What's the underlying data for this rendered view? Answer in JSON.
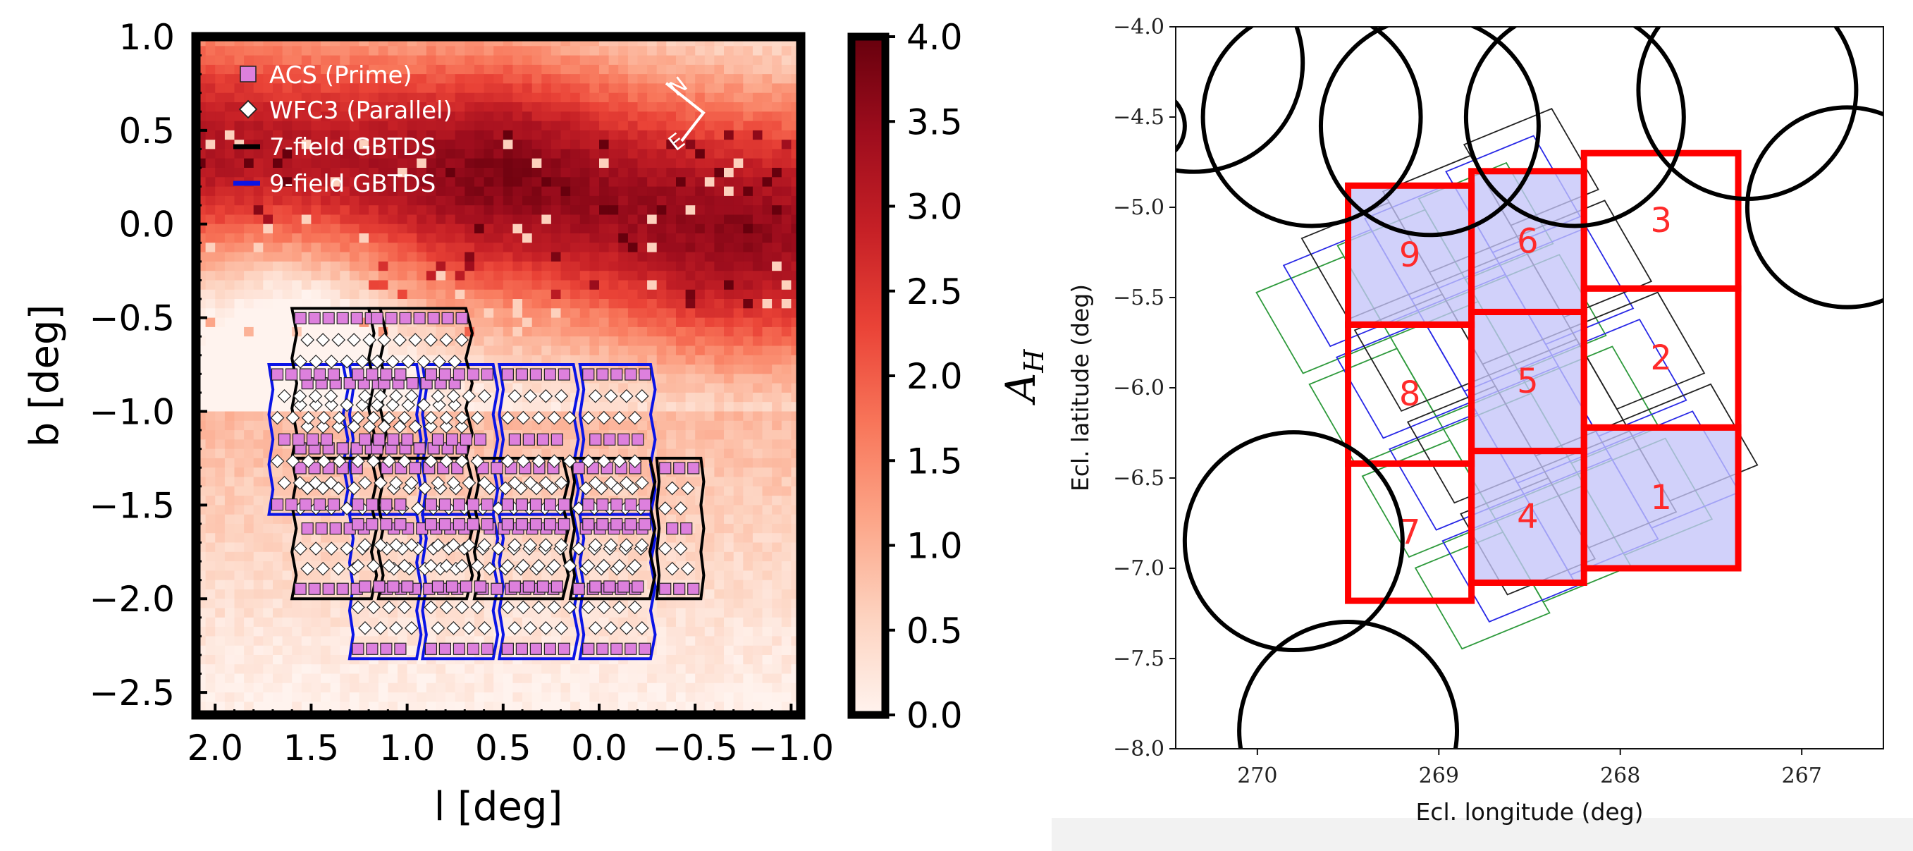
{
  "chart_data": [
    {
      "type": "heatmap",
      "title": "",
      "xlabel": "l [deg]",
      "ylabel": "b [deg]",
      "xlim": [
        2.1,
        -1.05
      ],
      "ylim": [
        -2.62,
        1.0
      ],
      "x_ticks": [
        "2.0",
        "1.5",
        "1.0",
        "0.5",
        "0.0",
        "−0.5",
        "−1.0"
      ],
      "y_ticks": [
        "1.0",
        "0.5",
        "0.0",
        "−0.5",
        "−1.0",
        "−1.5",
        "−2.0",
        "−2.5"
      ],
      "colorbar": {
        "label": "A_H",
        "range": [
          0.0,
          4.0
        ],
        "ticks": [
          "0.0",
          "0.5",
          "1.0",
          "1.5",
          "2.0",
          "2.5",
          "3.0",
          "3.5",
          "4.0"
        ],
        "colors": [
          "#fff3ee",
          "#fdd3c0",
          "#fca689",
          "#f8765a",
          "#ea4337",
          "#c62026",
          "#9e0d1d",
          "#67000d"
        ]
      },
      "legend": {
        "placement": "upper-left",
        "entries": [
          {
            "label": "ACS (Prime)",
            "marker": "square",
            "color": "#dd80dd"
          },
          {
            "label": "WFC3 (Parallel)",
            "marker": "diamond",
            "color": "#ffffff"
          },
          {
            "label": "7-field GBTDS",
            "marker": "line",
            "color": "#000000"
          },
          {
            "label": "9-field GBTDS",
            "marker": "line",
            "color": "#0a14e6"
          }
        ]
      },
      "compass": {
        "north": "N",
        "east": "E"
      },
      "series": [
        {
          "name": "7-field GBTDS",
          "fields": [
            {
              "l_range": [
                1.6,
                1.1
              ],
              "b_range": [
                -0.45,
                -1.25
              ]
            },
            {
              "l_range": [
                1.2,
                0.65
              ],
              "b_range": [
                -0.45,
                -1.25
              ]
            },
            {
              "l_range": [
                1.6,
                1.15
              ],
              "b_range": [
                -1.25,
                -2.0
              ]
            },
            {
              "l_range": [
                1.15,
                0.65
              ],
              "b_range": [
                -1.25,
                -2.0
              ]
            },
            {
              "l_range": [
                0.65,
                0.15
              ],
              "b_range": [
                -1.25,
                -2.0
              ]
            },
            {
              "l_range": [
                0.15,
                -0.3
              ],
              "b_range": [
                -1.25,
                -2.0
              ]
            },
            {
              "l_range": [
                -0.3,
                -0.55
              ],
              "b_range": [
                -1.25,
                -2.0
              ]
            }
          ]
        },
        {
          "name": "9-field GBTDS",
          "fields": [
            {
              "l_range": [
                1.72,
                1.3
              ],
              "b_range": [
                -0.75,
                -1.55
              ]
            },
            {
              "l_range": [
                1.3,
                0.92
              ],
              "b_range": [
                -0.75,
                -1.55
              ]
            },
            {
              "l_range": [
                0.92,
                0.52
              ],
              "b_range": [
                -0.75,
                -1.55
              ]
            },
            {
              "l_range": [
                0.52,
                0.1
              ],
              "b_range": [
                -0.75,
                -1.55
              ]
            },
            {
              "l_range": [
                0.1,
                -0.3
              ],
              "b_range": [
                -0.75,
                -1.55
              ]
            },
            {
              "l_range": [
                1.3,
                0.92
              ],
              "b_range": [
                -1.55,
                -2.32
              ]
            },
            {
              "l_range": [
                0.92,
                0.52
              ],
              "b_range": [
                -1.55,
                -2.32
              ]
            },
            {
              "l_range": [
                0.52,
                0.1
              ],
              "b_range": [
                -1.55,
                -2.32
              ]
            },
            {
              "l_range": [
                0.1,
                -0.3
              ],
              "b_range": [
                -1.55,
                -2.32
              ]
            }
          ]
        }
      ]
    },
    {
      "type": "scatter",
      "title": "",
      "xlabel": "Ecl. longitude (deg)",
      "ylabel": "Ecl. latitude (deg)",
      "xlim": [
        270.45,
        266.55
      ],
      "ylim": [
        -8.0,
        -4.0
      ],
      "x_ticks": [
        "270",
        "269",
        "268",
        "267"
      ],
      "y_ticks": [
        "−4.0",
        "−4.5",
        "−5.0",
        "−5.5",
        "−6.0",
        "−6.5",
        "−7.0",
        "−7.5",
        "−8.0"
      ],
      "grid": false,
      "colors": {
        "field_edge": "#ff0000",
        "field_fill": "#c4c4f8",
        "circle": "#000000",
        "green": "#2e9a3c",
        "blue": "#2828e6",
        "black": "#222222"
      },
      "fields": [
        {
          "label": "1",
          "lon_range": [
            268.2,
            267.35
          ],
          "lat_range": [
            -6.22,
            -7.0
          ],
          "filled": true
        },
        {
          "label": "2",
          "lon_range": [
            268.2,
            267.35
          ],
          "lat_range": [
            -5.45,
            -6.22
          ],
          "filled": false
        },
        {
          "label": "3",
          "lon_range": [
            268.2,
            267.35
          ],
          "lat_range": [
            -4.7,
            -5.45
          ],
          "filled": false
        },
        {
          "label": "4",
          "lon_range": [
            268.82,
            268.2
          ],
          "lat_range": [
            -6.35,
            -7.08
          ],
          "filled": true
        },
        {
          "label": "5",
          "lon_range": [
            268.82,
            268.2
          ],
          "lat_range": [
            -5.58,
            -6.35
          ],
          "filled": true
        },
        {
          "label": "6",
          "lon_range": [
            268.82,
            268.2
          ],
          "lat_range": [
            -4.8,
            -5.58
          ],
          "filled": true
        },
        {
          "label": "7",
          "lon_range": [
            269.5,
            268.82
          ],
          "lat_range": [
            -6.42,
            -7.18
          ],
          "filled": false
        },
        {
          "label": "8",
          "lon_range": [
            269.5,
            268.82
          ],
          "lat_range": [
            -5.65,
            -6.42
          ],
          "filled": false
        },
        {
          "label": "9",
          "lon_range": [
            269.5,
            268.82
          ],
          "lat_range": [
            -4.88,
            -5.65
          ],
          "filled": true
        }
      ],
      "circles": [
        {
          "lon": 270.35,
          "lat": -4.2,
          "r": 0.6
        },
        {
          "lon": 269.7,
          "lat": -4.5,
          "r": 0.6
        },
        {
          "lon": 269.05,
          "lat": -4.55,
          "r": 0.6
        },
        {
          "lon": 268.25,
          "lat": -4.5,
          "r": 0.6
        },
        {
          "lon": 267.3,
          "lat": -4.35,
          "r": 0.6
        },
        {
          "lon": 266.75,
          "lat": -5.0,
          "r": 0.55
        },
        {
          "lon": 269.8,
          "lat": -6.85,
          "r": 0.6
        },
        {
          "lon": 269.5,
          "lat": -7.9,
          "r": 0.6
        },
        {
          "lon": 270.6,
          "lat": -4.55,
          "r": 0.2
        }
      ]
    }
  ]
}
